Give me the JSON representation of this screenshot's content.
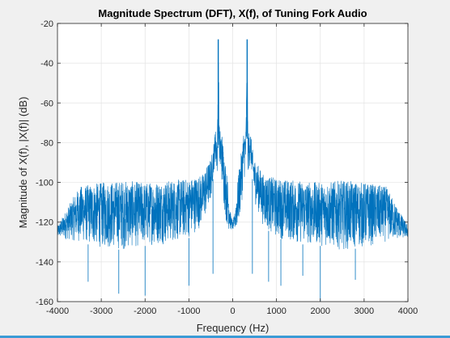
{
  "chart_data": {
    "type": "line",
    "title": "Magnitude Spectrum (DFT), X(f), of Tuning Fork Audio",
    "xlabel": "Frequency (Hz)",
    "ylabel": "Magnitude of X(f), |X(f)| (dB)",
    "xlim": [
      -4000,
      4000
    ],
    "ylim": [
      -160,
      -20
    ],
    "xticks": [
      -4000,
      -3000,
      -2000,
      -1000,
      0,
      1000,
      2000,
      3000,
      4000
    ],
    "yticks": [
      -20,
      -40,
      -60,
      -80,
      -100,
      -120,
      -140,
      -160
    ],
    "grid": true,
    "line_color": "#0072bd",
    "series": [
      {
        "x": [
          -4000,
          -3500,
          -3000,
          -2500,
          -2000,
          -1500,
          -1000,
          -700,
          -500,
          -440,
          -400,
          -350,
          -330,
          -300,
          -250,
          -200,
          -150,
          -100,
          -50,
          0,
          50,
          100,
          150,
          200,
          250,
          300,
          330,
          350,
          400,
          440,
          500,
          700,
          1000,
          1500,
          2000,
          2500,
          3000,
          3500,
          4000
        ],
        "y_upper": [
          -122,
          -102,
          -100,
          -99,
          -100,
          -99,
          -98,
          -96,
          -88,
          -82,
          -72,
          -76,
          -30,
          -73,
          -74,
          -84,
          -92,
          -102,
          -115,
          -120,
          -115,
          -102,
          -92,
          -84,
          -74,
          -73,
          -30,
          -76,
          -72,
          -82,
          -88,
          -96,
          -98,
          -99,
          -100,
          -99,
          -100,
          -102,
          -122
        ],
        "y_lower": [
          -128,
          -130,
          -133,
          -134,
          -132,
          -131,
          -128,
          -122,
          -110,
          -96,
          -91,
          -97,
          -78,
          -95,
          -100,
          -112,
          -120,
          -124,
          -124,
          -124,
          -124,
          -124,
          -120,
          -112,
          -100,
          -95,
          -78,
          -97,
          -91,
          -96,
          -110,
          -122,
          -128,
          -131,
          -132,
          -134,
          -133,
          -130,
          -128
        ],
        "peaks": [
          [
            -330,
            -28
          ],
          [
            330,
            -28
          ]
        ],
        "dips": [
          [
            -3300,
            -150
          ],
          [
            -2600,
            -156
          ],
          [
            -2000,
            -157
          ],
          [
            -1000,
            -152
          ],
          [
            -450,
            -146
          ],
          [
            450,
            -146
          ],
          [
            820,
            -150
          ],
          [
            1100,
            -152
          ],
          [
            1600,
            -147
          ],
          [
            2000,
            -160
          ],
          [
            2800,
            -149
          ]
        ]
      }
    ]
  }
}
